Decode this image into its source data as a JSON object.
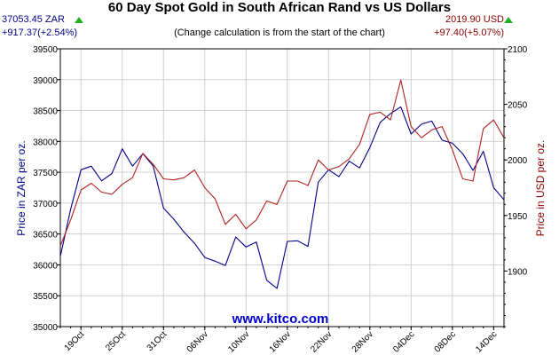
{
  "header": {
    "title": "60 Day Spot Gold in South African Rand vs US Dollars",
    "subtitle": "(Change calculation is from the start of the chart)",
    "left_price": "37053.45 ZAR",
    "left_change": "+917.37(+2.54%)",
    "right_price": "2019.90 USD",
    "right_change": "+97.40(+5.07%)",
    "watermark": "www.kitco.com"
  },
  "colors": {
    "zar": "#00008b",
    "usd": "#b22222",
    "grid": "#d0d0d0",
    "up": "#22b022",
    "watermark": "#0000cc"
  },
  "chart_data": {
    "type": "line",
    "x": [
      "17Oct",
      "18Oct",
      "19Oct",
      "20Oct",
      "23Oct",
      "24Oct",
      "25Oct",
      "26Oct",
      "27Oct",
      "30Oct",
      "31Oct",
      "01Nov",
      "02Nov",
      "03Nov",
      "06Nov",
      "07Nov",
      "08Nov",
      "09Nov",
      "10Nov",
      "13Nov",
      "14Nov",
      "15Nov",
      "16Nov",
      "17Nov",
      "20Nov",
      "21Nov",
      "22Nov",
      "23Nov",
      "24Nov",
      "27Nov",
      "28Nov",
      "29Nov",
      "30Nov",
      "01Dec",
      "04Dec",
      "05Dec",
      "06Dec",
      "07Dec",
      "08Dec",
      "11Dec",
      "12Dec",
      "13Dec",
      "14Dec",
      "15Dec"
    ],
    "x_tick_labels": [
      "19Oct",
      "25Oct",
      "31Oct",
      "06Nov",
      "10Nov",
      "16Nov",
      "22Nov",
      "28Nov",
      "04Dec",
      "08Dec",
      "14Dec"
    ],
    "x_tick_dates": [
      "19Oct",
      "25Oct",
      "31Oct",
      "06Nov",
      "10Nov",
      "16Nov",
      "22Nov",
      "28Nov",
      "04Dec",
      "08Dec",
      "14Dec"
    ],
    "series": [
      {
        "name": "ZAR",
        "axis": "left",
        "values": [
          36136,
          36900,
          37540,
          37600,
          37360,
          37480,
          37880,
          37600,
          37800,
          37600,
          36920,
          36740,
          36530,
          36350,
          36120,
          36060,
          35990,
          36450,
          36290,
          36370,
          35750,
          35620,
          36380,
          36390,
          36300,
          37340,
          37540,
          37430,
          37680,
          37570,
          37900,
          38310,
          38450,
          38560,
          38120,
          38280,
          38330,
          38020,
          37970,
          37800,
          37530,
          37840,
          37250,
          37053
        ]
      },
      {
        "name": "USD",
        "axis": "right",
        "values": [
          1922.5,
          1946,
          1973,
          1979,
          1971,
          1969,
          1978,
          1984,
          2006,
          1996,
          1983,
          1982,
          1984,
          1991,
          1975,
          1965,
          1942,
          1951,
          1938,
          1946,
          1963,
          1960,
          1981,
          1981,
          1977,
          2000,
          1991,
          1994,
          2001,
          2014,
          2041,
          2043,
          2036,
          2072,
          2030,
          2020,
          2027,
          2030,
          2009,
          1983,
          1981,
          2028,
          2036,
          2019.9
        ]
      }
    ],
    "left_axis": {
      "label": "Price in ZAR per oz.",
      "ylim": [
        35000,
        39500
      ],
      "ticks": [
        35000,
        35500,
        36000,
        36500,
        37000,
        37500,
        38000,
        38500,
        39000,
        39500
      ]
    },
    "right_axis": {
      "label": "Price in USD per oz.",
      "ylim": [
        1850,
        2100
      ],
      "ticks": [
        1900,
        1950,
        2000,
        2050,
        2100
      ]
    },
    "grid": true
  }
}
